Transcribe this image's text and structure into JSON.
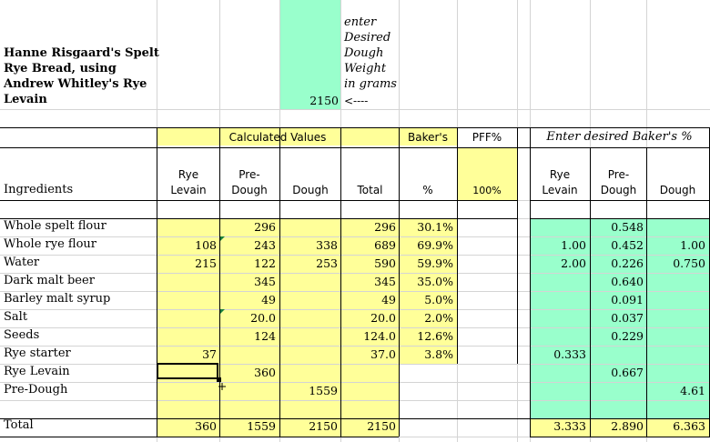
{
  "title_lines": [
    "Hanne Risgaard's Spelt",
    "Rye Bread, using",
    "Andrew Whitley's Rye",
    "Levain"
  ],
  "desired_weight_value": "2150",
  "instruction_lines": [
    "enter",
    "Desired",
    "Dough",
    "Weight",
    "in grams",
    "<----"
  ],
  "calculated_values_label": "Calculated Values",
  "bakers_label": "Baker's",
  "pff_label": "PFF%",
  "pff_value": "100%",
  "enter_bakers_label": "Enter desired Baker's %",
  "col_headers": {
    "ingredients": "Ingredients",
    "rye_levain": [
      "Rye",
      "Levain"
    ],
    "pre_dough": [
      "Pre-",
      "Dough"
    ],
    "dough": "Dough",
    "total": "Total",
    "pct": "%",
    "r_rye_levain": [
      "Rye",
      "Levain"
    ],
    "r_pre_dough": [
      "Pre-",
      "Dough"
    ],
    "r_dough": "Dough"
  },
  "rows": [
    {
      "name": "Whole spelt flour",
      "lev": "",
      "pre": "296",
      "dough": "",
      "total": "296",
      "pct": "30.1%",
      "r_lev": "",
      "r_pre": "0.548",
      "r_dough": ""
    },
    {
      "name": "Whole rye flour",
      "lev": "108",
      "pre": "243",
      "dough": "338",
      "total": "689",
      "pct": "69.9%",
      "r_lev": "1.00",
      "r_pre": "0.452",
      "r_dough": "1.00"
    },
    {
      "name": "Water",
      "lev": "215",
      "pre": "122",
      "dough": "253",
      "total": "590",
      "pct": "59.9%",
      "r_lev": "2.00",
      "r_pre": "0.226",
      "r_dough": "0.750"
    },
    {
      "name": "Dark malt beer",
      "lev": "",
      "pre": "345",
      "dough": "",
      "total": "345",
      "pct": "35.0%",
      "r_lev": "",
      "r_pre": "0.640",
      "r_dough": ""
    },
    {
      "name": "Barley malt syrup",
      "lev": "",
      "pre": "49",
      "dough": "",
      "total": "49",
      "pct": "5.0%",
      "r_lev": "",
      "r_pre": "0.091",
      "r_dough": ""
    },
    {
      "name": "Salt",
      "lev": "",
      "pre": "20.0",
      "dough": "",
      "total": "20.0",
      "pct": "2.0%",
      "r_lev": "",
      "r_pre": "0.037",
      "r_dough": ""
    },
    {
      "name": "Seeds",
      "lev": "",
      "pre": "124",
      "dough": "",
      "total": "124.0",
      "pct": "12.6%",
      "r_lev": "",
      "r_pre": "0.229",
      "r_dough": ""
    },
    {
      "name": "Rye starter",
      "lev": "37",
      "pre": "",
      "dough": "",
      "total": "37.0",
      "pct": "3.8%",
      "r_lev": "0.333",
      "r_pre": "",
      "r_dough": ""
    },
    {
      "name": "Rye Levain",
      "lev": "",
      "pre": "360",
      "dough": "",
      "total": "",
      "pct": "",
      "r_lev": "",
      "r_pre": "0.667",
      "r_dough": ""
    },
    {
      "name": "Pre-Dough",
      "lev": "",
      "pre": "",
      "dough": "1559",
      "total": "",
      "pct": "",
      "r_lev": "",
      "r_pre": "",
      "r_dough": "4.61"
    }
  ],
  "total_row": {
    "name": "Total",
    "lev": "360",
    "pre": "1559",
    "dough": "2150",
    "total": "2150",
    "r_lev": "3.333",
    "r_pre": "2.890",
    "r_dough": "6.363"
  }
}
